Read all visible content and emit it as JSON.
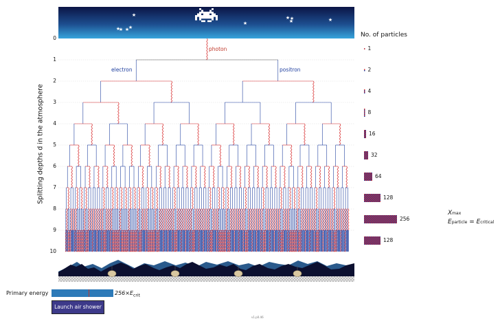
{
  "y_axis_label": "Splitting depths d in the atmosphere",
  "depths": [
    "0",
    "1",
    "2",
    "3",
    "4",
    "5",
    "6",
    "7",
    "8",
    "9",
    "10"
  ],
  "labels": {
    "photon": "photon",
    "electron": "electron",
    "positron": "positron"
  },
  "legend": {
    "title": "No. of particles",
    "counts": [
      "1",
      "2",
      "4",
      "8",
      "16",
      "32",
      "64",
      "128",
      "256",
      "128"
    ]
  },
  "annotation": {
    "xmax_main": "X",
    "xmax_sub": "max",
    "eq_main": "E",
    "eq_sub1": "particle",
    "eq_mid": " = E",
    "eq_sub2": "critical"
  },
  "controls": {
    "primary_energy_label": "Primary energy",
    "primary_energy_value": "256×E",
    "primary_energy_sub": "crit",
    "primary_energy_fraction": 0.6,
    "launch_label": "Launch air shower"
  },
  "version": "v1.p0.46",
  "colors": {
    "photon": "#d62728",
    "electron": "#1f3f9f",
    "sky_top": "#0d1b4f",
    "sky_bottom": "#2a8fd0"
  }
}
